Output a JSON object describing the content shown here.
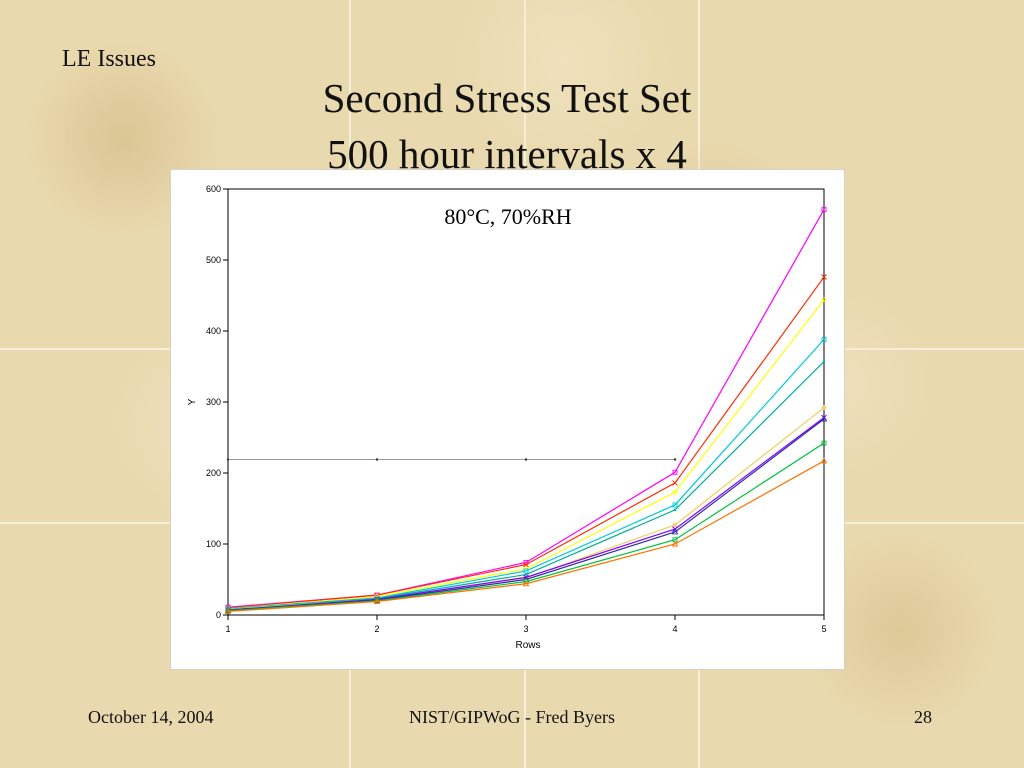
{
  "slide": {
    "section_label": "LE Issues",
    "title_line1": "Second Stress Test Set",
    "title_line2": "500 hour intervals x 4"
  },
  "footer": {
    "date": "October 14, 2004",
    "center": "NIST/GIPWoG - Fred Byers",
    "page": "28"
  },
  "chart_data": {
    "type": "line",
    "title": "80°C, 70%RH",
    "xlabel": "Rows",
    "ylabel": "Y",
    "xlim": [
      1,
      5
    ],
    "ylim": [
      0,
      600
    ],
    "x": [
      1,
      2,
      3,
      4,
      5
    ],
    "x_ticks": [
      "1",
      "2",
      "3",
      "4",
      "5"
    ],
    "y_ticks": [
      "0",
      "100",
      "200",
      "300",
      "400",
      "500",
      "600"
    ],
    "reference_line": {
      "y": 219,
      "color": "#9a9a9a"
    },
    "grid": false,
    "series": [
      {
        "color": "#ff00ff",
        "marker": "square",
        "values": [
          11,
          28,
          74,
          201,
          571
        ]
      },
      {
        "color": "#ff2a00",
        "marker": "x",
        "values": [
          10,
          28,
          71,
          186,
          476
        ]
      },
      {
        "color": "#ffff00",
        "marker": "circle",
        "values": [
          9,
          26,
          65,
          173,
          444
        ]
      },
      {
        "color": "#00c8d8",
        "marker": "square",
        "values": [
          9,
          24,
          62,
          155,
          388
        ]
      },
      {
        "color": "#00b0a0",
        "marker": "dot",
        "values": [
          8,
          23,
          57,
          148,
          357
        ]
      },
      {
        "color": "#f0d060",
        "marker": "star",
        "values": [
          8,
          22,
          52,
          127,
          292
        ]
      },
      {
        "color": "#8000ff",
        "marker": "x",
        "values": [
          7,
          22,
          53,
          121,
          278
        ]
      },
      {
        "color": "#3030a0",
        "marker": "triangle",
        "values": [
          7,
          21,
          50,
          117,
          276
        ]
      },
      {
        "color": "#00c040",
        "marker": "square",
        "values": [
          6,
          20,
          47,
          106,
          242
        ]
      },
      {
        "color": "#ff7000",
        "marker": "triangle",
        "values": [
          5,
          19,
          44,
          100,
          217
        ]
      }
    ]
  }
}
